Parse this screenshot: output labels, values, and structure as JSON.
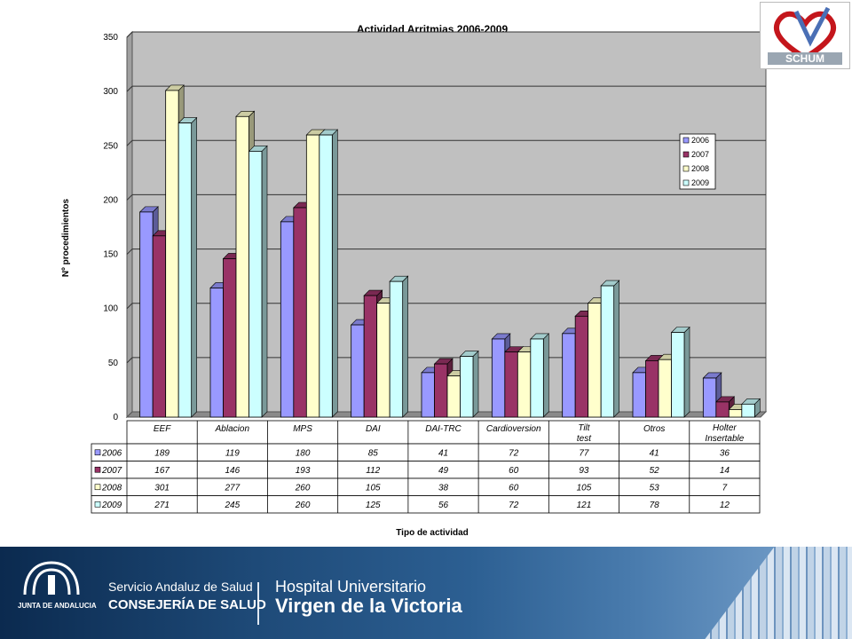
{
  "header": {
    "logo_text": "SCHUM"
  },
  "chart_data": {
    "type": "bar",
    "title": "Actividad Arritmias 2006-2009",
    "xlabel": "Tipo de actividad",
    "ylabel": "Nº procedimientos",
    "ylim": [
      0,
      350
    ],
    "yticks": [
      "0",
      "50",
      "100",
      "150",
      "200",
      "250",
      "300",
      "350"
    ],
    "grid": true,
    "legend_position": "right",
    "categories": [
      "EEF",
      "Ablacion",
      "MPS",
      "DAI",
      "DAI-TRC",
      "Cardioversion",
      "Tilt test",
      "Otros",
      "Holter Insertable"
    ],
    "series": [
      {
        "name": "2006",
        "color": "#9999FF",
        "values": [
          189,
          119,
          180,
          85,
          41,
          72,
          77,
          41,
          36
        ]
      },
      {
        "name": "2007",
        "color": "#993366",
        "values": [
          167,
          146,
          193,
          112,
          49,
          60,
          93,
          52,
          14
        ]
      },
      {
        "name": "2008",
        "color": "#FFFFCC",
        "values": [
          301,
          277,
          260,
          105,
          38,
          60,
          105,
          53,
          7
        ]
      },
      {
        "name": "2009",
        "color": "#CCFFFF",
        "values": [
          271,
          245,
          260,
          125,
          56,
          72,
          121,
          78,
          12
        ]
      }
    ]
  },
  "footer": {
    "junta": "JUNTA DE ANDALUCIA",
    "sas": "Servicio Andaluz de Salud",
    "consejeria": "CONSEJERÍA DE SALUD",
    "hospital": "Hospital Universitario",
    "virgen": "Virgen de la Victoria"
  }
}
